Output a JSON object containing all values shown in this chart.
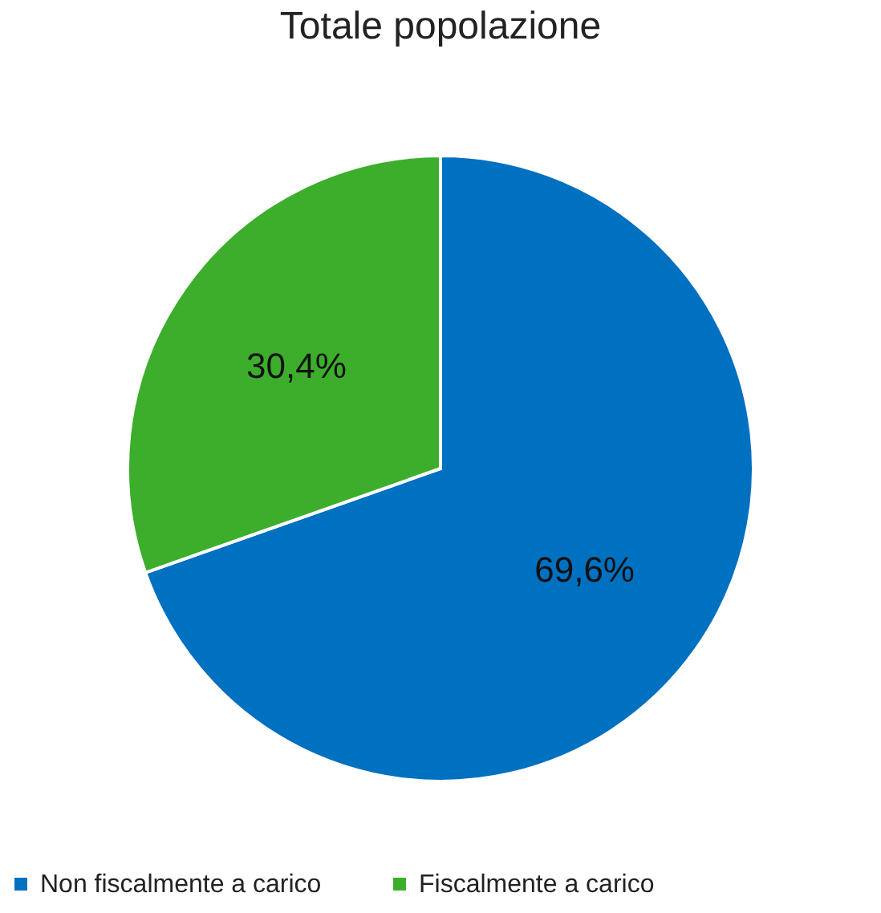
{
  "chart_data": {
    "type": "pie",
    "title": "Totale popolazione",
    "categories": [
      "Non fiscalmente a carico",
      "Fiscalmente a carico"
    ],
    "values": [
      69.6,
      30.4
    ],
    "colors": [
      "#0070c0",
      "#3cae2c"
    ],
    "value_labels": [
      "69,6%",
      "30,4%"
    ],
    "legend": "bottom"
  }
}
